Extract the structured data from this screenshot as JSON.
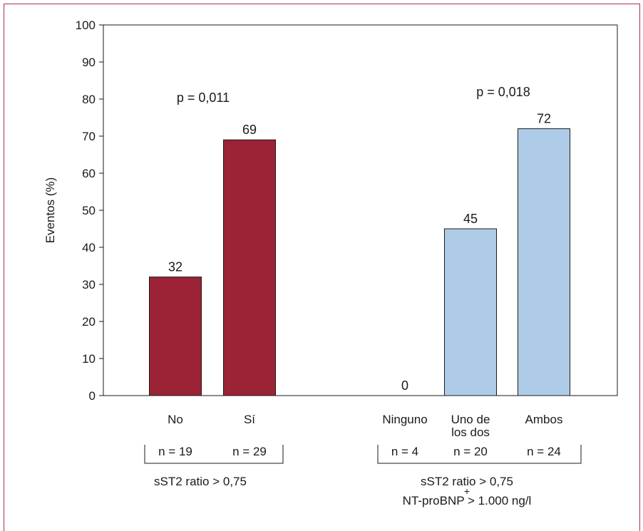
{
  "chart_data": {
    "type": "bar",
    "ylabel": "Eventos (%)",
    "ylim": [
      0,
      100
    ],
    "yticks": [
      0,
      10,
      20,
      30,
      40,
      50,
      60,
      70,
      80,
      90,
      100
    ],
    "grid": false,
    "groups": [
      {
        "id": "left",
        "categories": [
          {
            "label": [
              "No"
            ],
            "value": 32,
            "value_label": "32",
            "n": "n = 19"
          },
          {
            "label": [
              "Sí"
            ],
            "value": 69,
            "value_label": "69",
            "n": "n = 29"
          }
        ],
        "p_value": "p = 0,011",
        "caption": [
          "sST2 ratio > 0,75"
        ],
        "color": "#9b2335"
      },
      {
        "id": "right",
        "categories": [
          {
            "label": [
              "Ninguno"
            ],
            "value": 0,
            "value_label": "0",
            "n": "n = 4"
          },
          {
            "label": [
              "Uno de",
              "los dos"
            ],
            "value": 45,
            "value_label": "45",
            "n": "n = 20"
          },
          {
            "label": [
              "Ambos"
            ],
            "value": 72,
            "value_label": "72",
            "n": "n = 24"
          }
        ],
        "p_value": "p = 0,018",
        "caption": [
          "sST2 ratio > 0,75",
          "+",
          "NT-proBNP > 1.000 ng/l"
        ],
        "color": "#aecce8"
      }
    ]
  },
  "colors": {
    "frame": "#a5324a",
    "bar_dark": "#9b2335",
    "bar_light": "#aecce8",
    "bar_outline": "#1a1a1a"
  }
}
